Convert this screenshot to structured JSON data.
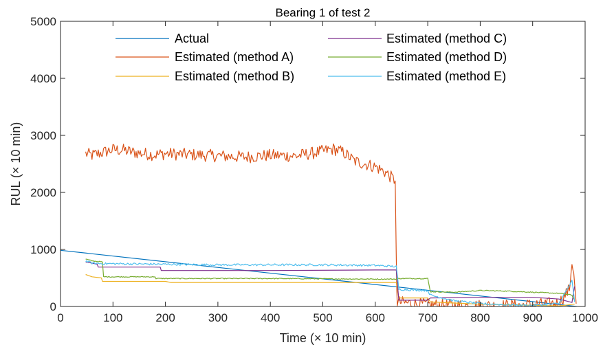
{
  "chart_data": {
    "type": "line",
    "title": "Bearing 1 of test 2",
    "xlabel": "Time (× 10 min)",
    "ylabel": "RUL (× 10 min)",
    "xlim": [
      0,
      1000
    ],
    "ylim": [
      0,
      5000
    ],
    "xticks": [
      "0",
      "100",
      "200",
      "300",
      "400",
      "500",
      "600",
      "700",
      "800",
      "900",
      "1000"
    ],
    "yticks": [
      "0",
      "1000",
      "2000",
      "3000",
      "4000",
      "5000"
    ],
    "grid": false,
    "legend_placement": "top (two columns)",
    "series": [
      {
        "name": "Actual",
        "color": "#0072BD",
        "x": [
          0,
          984
        ],
        "y": [
          984,
          0
        ]
      },
      {
        "name": "Estimated (method A)",
        "color": "#D95319",
        "x": [
          48,
          60,
          80,
          100,
          120,
          140,
          160,
          180,
          200,
          250,
          300,
          350,
          400,
          450,
          500,
          520,
          540,
          560,
          580,
          600,
          620,
          638,
          640,
          641,
          642,
          650,
          700,
          750,
          800,
          850,
          900,
          950,
          970,
          975,
          980,
          983
        ],
        "y": [
          2680,
          2650,
          2700,
          2750,
          2740,
          2700,
          2680,
          2660,
          2680,
          2660,
          2640,
          2620,
          2650,
          2640,
          2720,
          2760,
          2700,
          2550,
          2500,
          2450,
          2350,
          2200,
          900,
          300,
          80,
          70,
          30,
          20,
          15,
          15,
          30,
          60,
          300,
          800,
          400,
          50
        ]
      },
      {
        "name": "Estimated (method B)",
        "color": "#EDB120",
        "x": [
          48,
          60,
          78,
          80,
          200,
          210,
          400,
          500,
          600,
          640,
          645,
          700,
          705,
          750,
          800,
          900,
          950,
          980
        ],
        "y": [
          560,
          520,
          500,
          440,
          440,
          420,
          420,
          420,
          420,
          420,
          150,
          150,
          80,
          60,
          40,
          20,
          10,
          40
        ]
      },
      {
        "name": "Estimated (method C)",
        "color": "#7E2F8E",
        "x": [
          48,
          60,
          70,
          72,
          190,
          192,
          400,
          600,
          640,
          645,
          700,
          705,
          800,
          900,
          950,
          975,
          980
        ],
        "y": [
          780,
          760,
          740,
          690,
          690,
          630,
          630,
          640,
          640,
          110,
          110,
          150,
          160,
          160,
          130,
          70,
          350
        ]
      },
      {
        "name": "Estimated (method D)",
        "color": "#77AC30",
        "x": [
          48,
          60,
          80,
          82,
          180,
          182,
          400,
          600,
          640,
          645,
          700,
          705,
          750,
          800,
          850,
          900,
          950,
          975,
          980
        ],
        "y": [
          830,
          800,
          780,
          520,
          520,
          490,
          490,
          480,
          480,
          490,
          490,
          260,
          250,
          280,
          270,
          250,
          230,
          200,
          100
        ]
      },
      {
        "name": "Estimated (method E)",
        "color": "#4DBEEE",
        "x": [
          48,
          60,
          80,
          100,
          200,
          300,
          400,
          500,
          600,
          640,
          645,
          700,
          705,
          750,
          800,
          850,
          900,
          950,
          975,
          980
        ],
        "y": [
          800,
          760,
          750,
          750,
          740,
          730,
          730,
          730,
          720,
          700,
          300,
          280,
          200,
          100,
          50,
          30,
          20,
          50,
          450,
          80
        ]
      }
    ]
  }
}
